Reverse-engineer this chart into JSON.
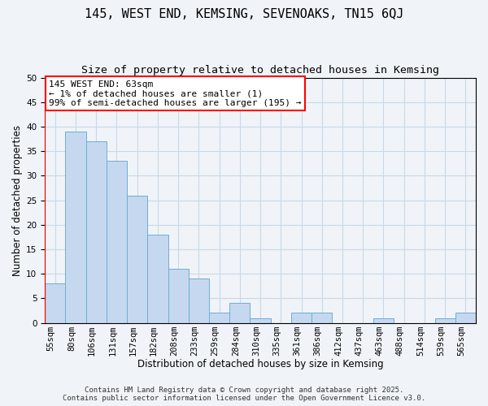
{
  "title": "145, WEST END, KEMSING, SEVENOAKS, TN15 6QJ",
  "subtitle": "Size of property relative to detached houses in Kemsing",
  "xlabel": "Distribution of detached houses by size in Kemsing",
  "ylabel": "Number of detached properties",
  "bin_labels": [
    "55sqm",
    "80sqm",
    "106sqm",
    "131sqm",
    "157sqm",
    "182sqm",
    "208sqm",
    "233sqm",
    "259sqm",
    "284sqm",
    "310sqm",
    "335sqm",
    "361sqm",
    "386sqm",
    "412sqm",
    "437sqm",
    "463sqm",
    "488sqm",
    "514sqm",
    "539sqm",
    "565sqm"
  ],
  "bar_values": [
    8,
    39,
    37,
    33,
    26,
    18,
    11,
    9,
    2,
    4,
    1,
    0,
    2,
    2,
    0,
    0,
    1,
    0,
    0,
    1,
    2
  ],
  "bar_color": "#c5d8f0",
  "bar_edge_color": "#6baed6",
  "ylim": [
    0,
    50
  ],
  "yticks": [
    0,
    5,
    10,
    15,
    20,
    25,
    30,
    35,
    40,
    45,
    50
  ],
  "grid_color": "#c8d8e8",
  "annotation_line1": "145 WEST END: 63sqm",
  "annotation_line2": "← 1% of detached houses are smaller (1)",
  "annotation_line3": "99% of semi-detached houses are larger (195) →",
  "footer_line1": "Contains HM Land Registry data © Crown copyright and database right 2025.",
  "footer_line2": "Contains public sector information licensed under the Open Government Licence v3.0.",
  "bg_color": "#f0f4f8",
  "title_fontsize": 11,
  "subtitle_fontsize": 9.5,
  "axis_label_fontsize": 8.5,
  "tick_fontsize": 7.5,
  "annotation_fontsize": 8,
  "footer_fontsize": 6.5
}
